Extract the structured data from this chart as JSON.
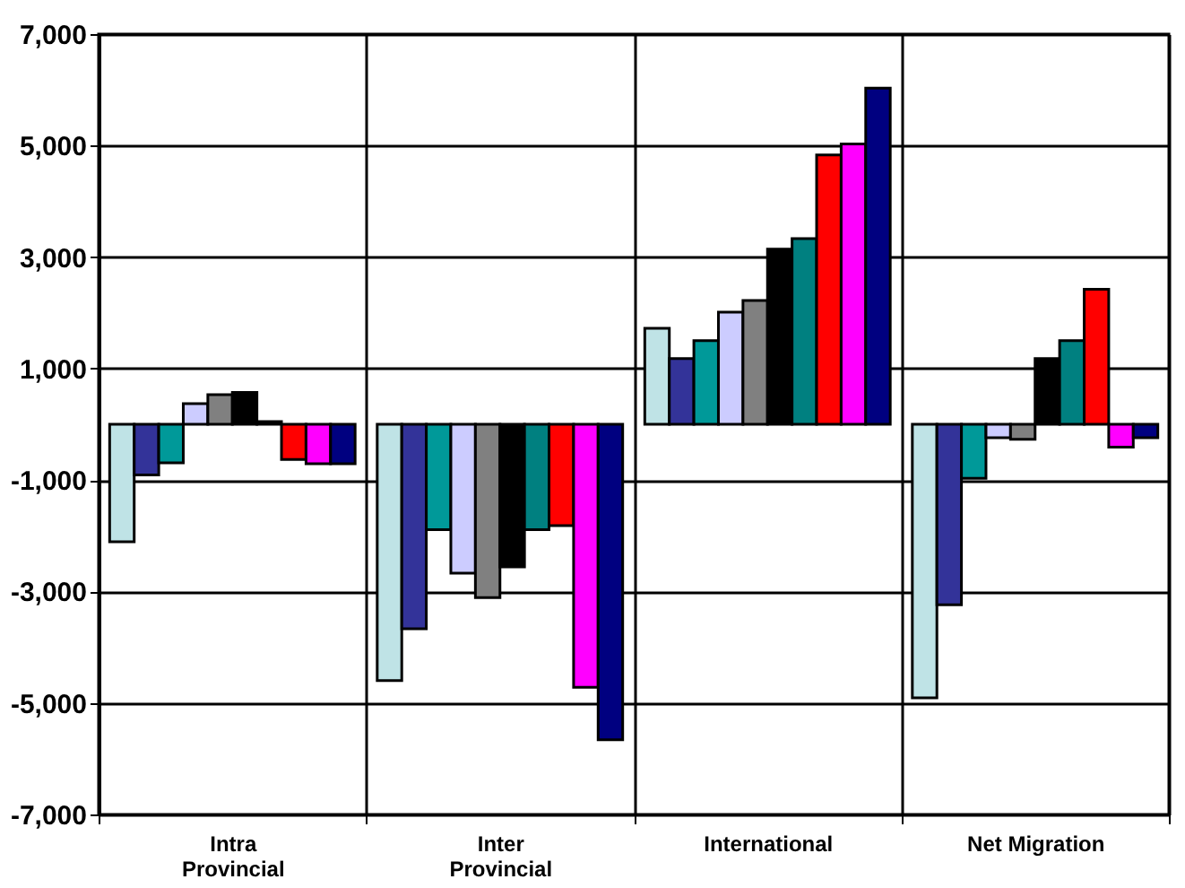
{
  "chart_data": {
    "type": "bar",
    "categories": [
      "Intra\nProvincial",
      "Inter\nProvincial",
      "International",
      "Net Migration"
    ],
    "series": [
      {
        "color": "#bfe3e6",
        "values": [
          -2110,
          -4600,
          1720,
          -4910
        ]
      },
      {
        "color": "#333399",
        "values": [
          -910,
          -3670,
          1180,
          -3240
        ]
      },
      {
        "color": "#009999",
        "values": [
          -690,
          -1890,
          1500,
          -970
        ]
      },
      {
        "color": "#ccccff",
        "values": [
          370,
          -2670,
          2010,
          -240
        ]
      },
      {
        "color": "#808080",
        "values": [
          530,
          -3110,
          2220,
          -270
        ]
      },
      {
        "color": "#000000",
        "values": [
          570,
          -2560,
          3140,
          1180
        ]
      },
      {
        "color": "#008080",
        "values": [
          50,
          -1890,
          3330,
          1500
        ]
      },
      {
        "color": "#ff0000",
        "values": [
          -630,
          -1820,
          4830,
          2420
        ]
      },
      {
        "color": "#ff00ff",
        "values": [
          -710,
          -4720,
          5030,
          -410
        ]
      },
      {
        "color": "#000080",
        "values": [
          -710,
          -5660,
          6030,
          -240
        ]
      }
    ],
    "ylim": [
      -7000,
      7000
    ],
    "yticks": [
      {
        "value": 7000,
        "label": "7,000"
      },
      {
        "value": 5000,
        "label": "5,000"
      },
      {
        "value": 3000,
        "label": "3,000"
      },
      {
        "value": 1000,
        "label": "1,000"
      },
      {
        "value": -1000,
        "label": "-1,000"
      },
      {
        "value": -3000,
        "label": "-3,000"
      },
      {
        "value": -5000,
        "label": "-5,000"
      },
      {
        "value": -7000,
        "label": "-7,000"
      }
    ],
    "grid": true,
    "legend": false
  }
}
